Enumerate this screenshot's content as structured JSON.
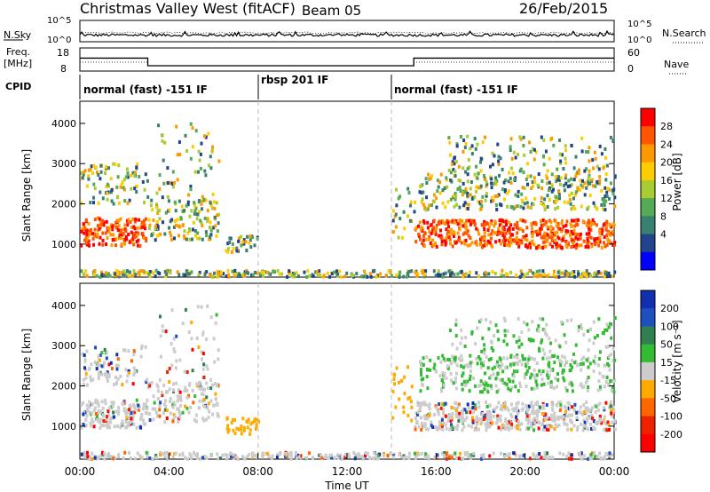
{
  "header": {
    "title": "Christmas Valley West (fitACF)",
    "beam": "Beam 05",
    "date": "26/Feb/2015"
  },
  "chart_data": [
    {
      "type": "line",
      "name": "sky-noise-panel",
      "left_label": "N.Sky",
      "right_label": "N.Search",
      "ticks_left": [
        "10^5",
        "10^0"
      ],
      "ticks_right": [
        "10^5",
        "10^0"
      ]
    },
    {
      "type": "line",
      "name": "frequency-nave-panel",
      "left_label": "Freq.\n[MHz]",
      "right_label": "Nave",
      "yticks_left": [
        "18",
        "8"
      ],
      "yticks_right": [
        "60",
        "0"
      ],
      "freq_steps": [
        {
          "x": [
            0,
            3.05
          ],
          "y": 13.6
        },
        {
          "x": [
            3.05,
            15.0
          ],
          "y": 10.3
        },
        {
          "x": [
            15.0,
            24
          ],
          "y": 13.6
        }
      ],
      "ylim": [
        8,
        18
      ]
    },
    {
      "type": "table",
      "name": "cpid-strip",
      "label": "CPID",
      "segments": [
        {
          "x": [
            0,
            8.0
          ],
          "text": "normal (fast) -151 IF"
        },
        {
          "x": [
            8.0,
            14.0
          ],
          "text": "rbsp 201 IF"
        },
        {
          "x": [
            14.0,
            24
          ],
          "text": "normal (fast) -151 IF"
        }
      ]
    },
    {
      "type": "heatmap",
      "name": "power-range-time",
      "ylabel": "Slant Range [km]",
      "yticks": [
        1000,
        2000,
        3000,
        4000
      ],
      "ylim": [
        180,
        4550
      ],
      "xlim": [
        0,
        24
      ],
      "colorbar": {
        "label": "Power [dB]",
        "ticks": [
          "28",
          "24",
          "20",
          "16",
          "12",
          "8",
          "4"
        ],
        "colors": [
          "#ff0000",
          "#ff5500",
          "#ff9900",
          "#ffcc00",
          "#aacc33",
          "#55aa55",
          "#3a8070",
          "#22448a",
          "#0000ff"
        ]
      }
    },
    {
      "type": "heatmap",
      "name": "velocity-range-time",
      "ylabel": "Slant Range [km]",
      "yticks": [
        1000,
        2000,
        3000,
        4000
      ],
      "ylim": [
        180,
        4550
      ],
      "xlim": [
        0,
        24
      ],
      "xlabel": "Time UT",
      "xticks": [
        "00:00",
        "04:00",
        "08:00",
        "12:00",
        "16:00",
        "20:00",
        "00:00"
      ],
      "colorbar": {
        "label": "Velocity [m s⁻¹]",
        "ticks": [
          "200",
          "100",
          "50",
          "15",
          "-15",
          "-50",
          "-100",
          "-200"
        ],
        "colors": [
          "#1030b0",
          "#2050c0",
          "#2f7f4f",
          "#33bb33",
          "#cccccc",
          "#ffaa00",
          "#ff6600",
          "#ee2200",
          "#ff0000"
        ]
      }
    }
  ]
}
